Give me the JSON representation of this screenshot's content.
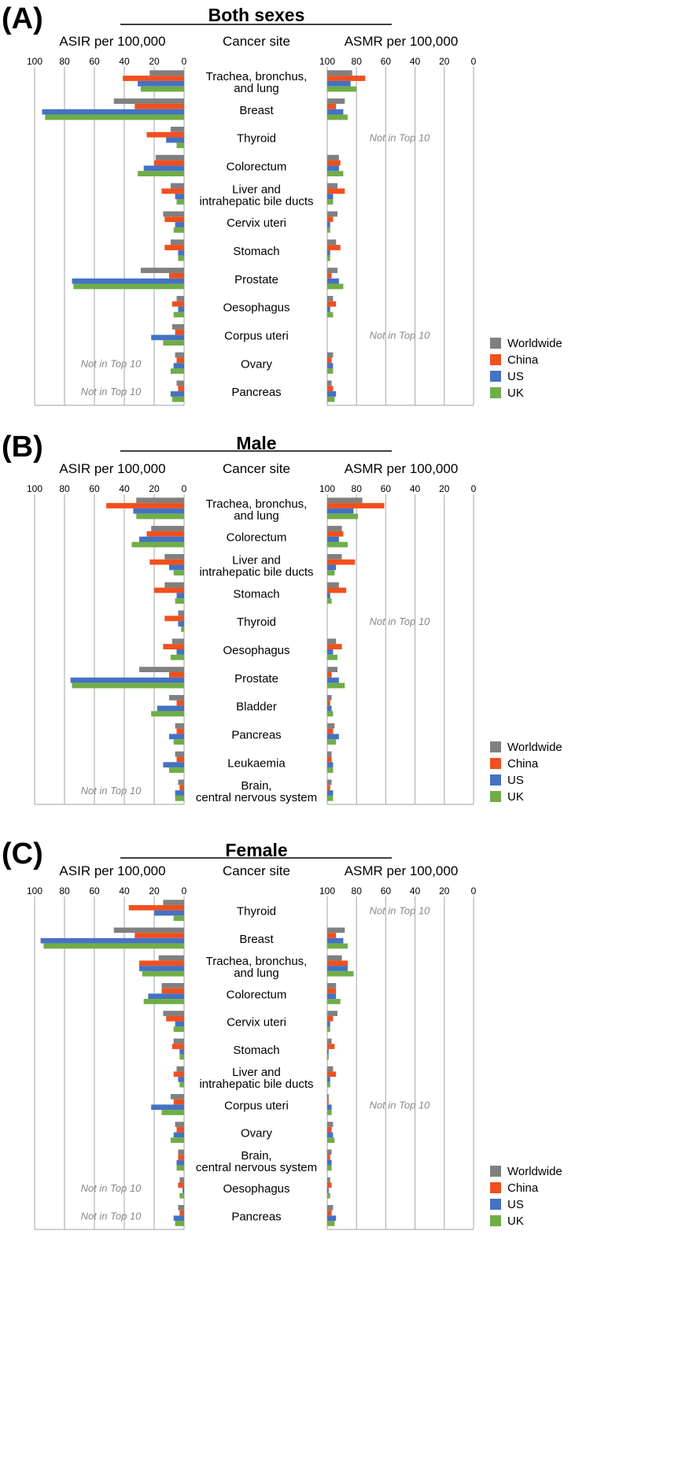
{
  "chart_data": {
    "type": "bar",
    "orientation": "horizontal-mirrored",
    "series": [
      "Worldwide",
      "China",
      "US",
      "UK"
    ],
    "colors": {
      "Worldwide": "#808080",
      "China": "#f0501e",
      "US": "#4472c4",
      "UK": "#70ad47"
    },
    "left_axis": {
      "label": "ASIR per 100,000",
      "ticks": [
        "100",
        "80",
        "60",
        "40",
        "20",
        "0"
      ],
      "range": [
        0,
        100
      ],
      "reversed": true
    },
    "right_axis": {
      "label": "ASMR per 100,000",
      "ticks": [
        "100",
        "80",
        "60",
        "40",
        "20",
        "0"
      ],
      "range": [
        0,
        100
      ],
      "reversed": true
    },
    "center_header": "Cancer site",
    "not_in_top10_label": "Not in Top 10",
    "legend_position": "right",
    "grid": true,
    "panels": [
      {
        "tag": "(A)",
        "title": "Both sexes",
        "rows": [
          {
            "site": [
              "Trachea, bronchus,",
              "and lung"
            ],
            "asir": [
              23,
              41,
              31,
              29
            ],
            "asmr": [
              83,
              74,
              84,
              80
            ]
          },
          {
            "site": [
              "Breast"
            ],
            "asir": [
              47,
              33,
              95,
              93
            ],
            "asmr": [
              88,
              94,
              89,
              86
            ]
          },
          {
            "site": [
              "Thyroid"
            ],
            "asir": [
              9,
              25,
              12,
              5
            ],
            "asmr": null
          },
          {
            "site": [
              "Colorectum"
            ],
            "asir": [
              19,
              20,
              27,
              31
            ],
            "asmr": [
              92,
              91,
              92,
              89
            ]
          },
          {
            "site": [
              "Liver and",
              "intrahepatic bile ducts"
            ],
            "asir": [
              9,
              15,
              6,
              5
            ],
            "asmr": [
              93,
              88,
              96,
              96
            ]
          },
          {
            "site": [
              "Cervix uteri"
            ],
            "asir": [
              14,
              13,
              6,
              7
            ],
            "asmr": [
              93,
              96,
              98,
              98
            ]
          },
          {
            "site": [
              "Stomach"
            ],
            "asir": [
              9,
              13,
              4,
              4
            ],
            "asmr": [
              94,
              91,
              98,
              98
            ]
          },
          {
            "site": [
              "Prostate"
            ],
            "asir": [
              29,
              10,
              75,
              74
            ],
            "asmr": [
              93,
              97,
              92,
              89
            ]
          },
          {
            "site": [
              "Oesophagus"
            ],
            "asir": [
              5,
              8,
              4,
              7
            ],
            "asmr": [
              96,
              94,
              98,
              96
            ]
          },
          {
            "site": [
              "Corpus uteri"
            ],
            "asir": [
              8,
              6,
              22,
              14
            ],
            "asmr": null
          },
          {
            "site": [
              "Ovary"
            ],
            "asir": [
              6,
              5,
              7,
              9
            ],
            "asmr": [
              96,
              97,
              96,
              96
            ]
          },
          {
            "site": [
              "Pancreas"
            ],
            "asir": [
              5,
              4,
              9,
              8
            ],
            "asmr": [
              97,
              96,
              94,
              95
            ]
          }
        ],
        "asir_not_top10": [
          10,
          11
        ],
        "asmr_not_top10_rows": [
          2,
          9
        ]
      },
      {
        "tag": "(B)",
        "title": "Male",
        "rows": [
          {
            "site": [
              "Trachea, bronchus,",
              "and lung"
            ],
            "asir": [
              32,
              52,
              34,
              32
            ],
            "asmr": [
              76,
              61,
              82,
              79
            ]
          },
          {
            "site": [
              "Colorectum"
            ],
            "asir": [
              22,
              25,
              30,
              35
            ],
            "asmr": [
              90,
              89,
              92,
              86
            ]
          },
          {
            "site": [
              "Liver and",
              "intrahepatic bile ducts"
            ],
            "asir": [
              13,
              23,
              10,
              7
            ],
            "asmr": [
              90,
              81,
              94,
              95
            ]
          },
          {
            "site": [
              "Stomach"
            ],
            "asir": [
              13,
              20,
              5,
              6
            ],
            "asmr": [
              92,
              87,
              98,
              97
            ]
          },
          {
            "site": [
              "Thyroid"
            ],
            "asir": [
              4,
              13,
              4,
              2
            ],
            "asmr": null
          },
          {
            "site": [
              "Oesophagus"
            ],
            "asir": [
              8,
              14,
              5,
              9
            ],
            "asmr": [
              94,
              90,
              96,
              93
            ]
          },
          {
            "site": [
              "Prostate"
            ],
            "asir": [
              30,
              10,
              76,
              75
            ],
            "asmr": [
              93,
              97,
              92,
              88
            ]
          },
          {
            "site": [
              "Bladder"
            ],
            "asir": [
              10,
              5,
              18,
              22
            ],
            "asmr": [
              97,
              98,
              97,
              96
            ]
          },
          {
            "site": [
              "Pancreas"
            ],
            "asir": [
              6,
              5,
              10,
              7
            ],
            "asmr": [
              95,
              96,
              92,
              94
            ]
          },
          {
            "site": [
              "Leukaemia"
            ],
            "asir": [
              6,
              5,
              14,
              10
            ],
            "asmr": [
              97,
              97,
              96,
              96
            ]
          },
          {
            "site": [
              "Brain,",
              "central nervous system"
            ],
            "asir": [
              4,
              3,
              6,
              6
            ],
            "asmr": [
              97,
              98,
              96,
              96
            ]
          }
        ],
        "asir_not_top10": [
          10
        ],
        "asmr_not_top10_rows": [
          4
        ]
      },
      {
        "tag": "(C)",
        "title": "Female",
        "rows": [
          {
            "site": [
              "Thyroid"
            ],
            "asir": [
              14,
              37,
              20,
              7
            ],
            "asmr": null
          },
          {
            "site": [
              "Breast"
            ],
            "asir": [
              47,
              33,
              96,
              94
            ],
            "asmr": [
              88,
              94,
              89,
              86
            ]
          },
          {
            "site": [
              "Trachea, bronchus,",
              "and lung"
            ],
            "asir": [
              17,
              30,
              30,
              28
            ],
            "asmr": [
              90,
              86,
              86,
              82
            ]
          },
          {
            "site": [
              "Colorectum"
            ],
            "asir": [
              15,
              15,
              24,
              27
            ],
            "asmr": [
              94,
              94,
              94,
              91
            ]
          },
          {
            "site": [
              "Cervix uteri"
            ],
            "asir": [
              14,
              12,
              6,
              7
            ],
            "asmr": [
              93,
              96,
              98,
              98
            ]
          },
          {
            "site": [
              "Stomach"
            ],
            "asir": [
              7,
              8,
              3,
              3
            ],
            "asmr": [
              97,
              95,
              99,
              99
            ]
          },
          {
            "site": [
              "Liver and",
              "intrahepatic bile ducts"
            ],
            "asir": [
              5,
              7,
              4,
              3
            ],
            "asmr": [
              96,
              94,
              98,
              98
            ]
          },
          {
            "site": [
              "Corpus uteri"
            ],
            "asir": [
              9,
              7,
              22,
              15
            ],
            "asmr": [
              99,
              99,
              97,
              97
            ]
          },
          {
            "site": [
              "Ovary"
            ],
            "asir": [
              6,
              5,
              7,
              9
            ],
            "asmr": [
              96,
              97,
              96,
              95
            ]
          },
          {
            "site": [
              "Brain,",
              "central nervous system"
            ],
            "asir": [
              4,
              4,
              5,
              5
            ],
            "asmr": [
              97,
              98,
              97,
              97
            ]
          },
          {
            "site": [
              "Oesophagus"
            ],
            "asir": [
              3,
              4,
              1,
              3
            ],
            "asmr": [
              98,
              97,
              99,
              98
            ]
          },
          {
            "site": [
              "Pancreas"
            ],
            "asir": [
              4,
              3,
              7,
              6
            ],
            "asmr": [
              96,
              97,
              94,
              95
            ]
          }
        ],
        "asir_not_top10": [
          10,
          11
        ],
        "asmr_not_top10_rows": [
          0,
          7
        ]
      }
    ]
  }
}
